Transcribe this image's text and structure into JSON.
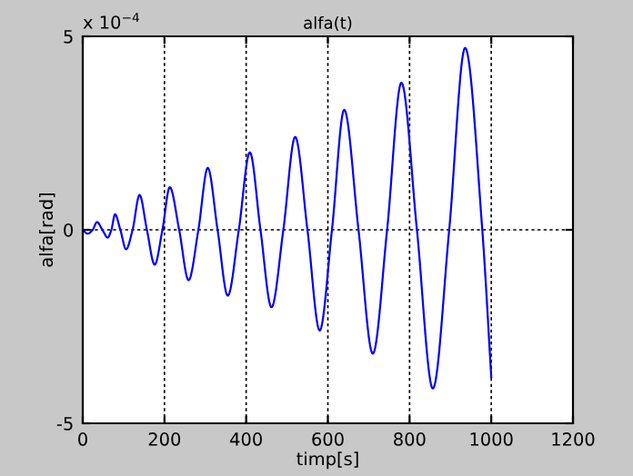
{
  "chart_data": {
    "type": "line",
    "title": "alfa(t)",
    "xlabel": "timp[s]",
    "ylabel": "alfa[rad]",
    "annotations": [
      "x 10$^{−4}$"
    ],
    "xlim": [
      0,
      1200
    ],
    "xticks": [
      0,
      200,
      400,
      600,
      800,
      1000,
      1200
    ],
    "ylim": [
      -5,
      5
    ],
    "yticks": [
      -5,
      0,
      5
    ],
    "grid": true,
    "line_style": "solid",
    "marker": "none",
    "series": [
      {
        "color": "#0000ff",
        "x": [
          0,
          12,
          24,
          35,
          48,
          61,
          70,
          79,
          92,
          106,
          122,
          139,
          157,
          176,
          195,
          213,
          236,
          259,
          283,
          306,
          330,
          355,
          382,
          409,
          435,
          462,
          491,
          520,
          550,
          580,
          610,
          640,
          675,
          710,
          745,
          780,
          818,
          857,
          897,
          936,
          978,
          1000
        ],
        "values": [
          0,
          -0.1,
          0,
          0.2,
          0,
          -0.2,
          0,
          0.4,
          0,
          -0.5,
          0,
          0.9,
          0,
          -0.9,
          0,
          1.1,
          0,
          -1.3,
          0,
          1.6,
          0,
          -1.7,
          0,
          2.0,
          0,
          -2.0,
          0,
          2.4,
          0,
          -2.6,
          0,
          3.1,
          0,
          -3.2,
          0,
          3.8,
          0,
          -4.1,
          0,
          4.7,
          0,
          -3.8
        ]
      }
    ]
  }
}
